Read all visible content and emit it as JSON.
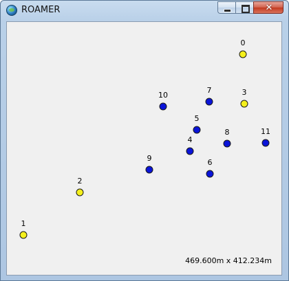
{
  "window": {
    "title": "ROAMER",
    "app_icon": "globe-icon",
    "buttons": {
      "minimize": "minimize-icon",
      "maximize": "maximize-icon",
      "close": "close-icon",
      "close_glyph": "✕"
    }
  },
  "map": {
    "dimensions_label": "469.600m x 412.234m",
    "colors": {
      "blue": "#0a14d8",
      "yellow": "#f5f01c",
      "outline": "#1a1a1a",
      "background": "#f0f0f0"
    },
    "nodes": [
      {
        "label": "0",
        "color": "yellow"
      },
      {
        "label": "1",
        "color": "yellow"
      },
      {
        "label": "2",
        "color": "yellow"
      },
      {
        "label": "3",
        "color": "yellow"
      },
      {
        "label": "4",
        "color": "blue"
      },
      {
        "label": "5",
        "color": "blue"
      },
      {
        "label": "6",
        "color": "blue"
      },
      {
        "label": "7",
        "color": "blue"
      },
      {
        "label": "8",
        "color": "blue"
      },
      {
        "label": "9",
        "color": "blue"
      },
      {
        "label": "10",
        "color": "blue"
      },
      {
        "label": "11",
        "color": "blue"
      }
    ]
  }
}
